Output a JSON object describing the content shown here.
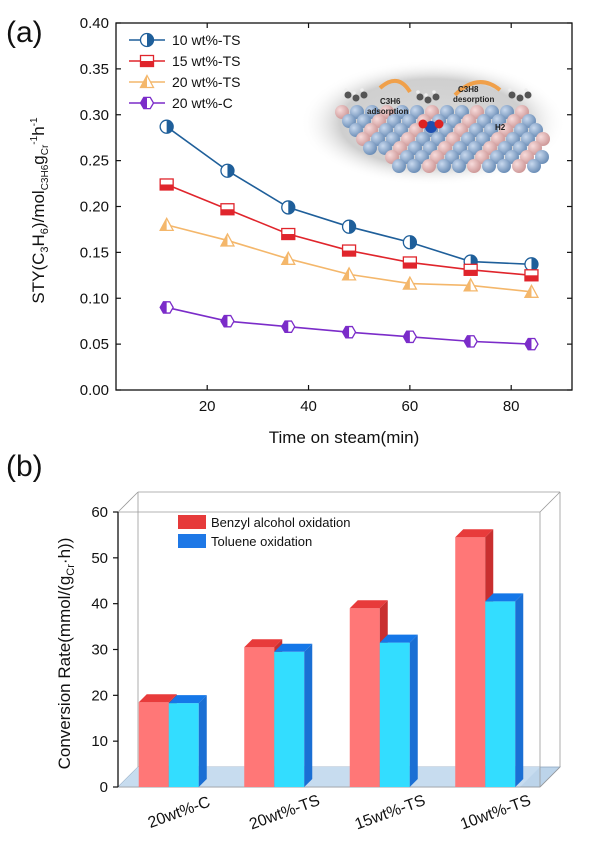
{
  "panel_labels": {
    "a": "(a)",
    "b": "(b)"
  },
  "inset": {
    "label_left_species": "C3H6",
    "label_left_action": "adsorption",
    "label_right_species": "C3H8",
    "label_right_action": "desorption",
    "label_h2": "H2"
  },
  "chart_data": [
    {
      "type": "line",
      "ylabel_parts": {
        "main": "STY(C",
        "sub1": "3",
        "mid1": "H",
        "sub2": "6",
        "mid2": ")/mol",
        "sub3": "C3H6",
        "mid3": "g",
        "sub4": "Cr",
        "sup1": "-1",
        "mid4": "h",
        "sup2": "-1"
      },
      "xlabel": "Time on steam(min)",
      "xlim": [
        2,
        92
      ],
      "ylim": [
        0.0,
        0.4
      ],
      "xticks": [
        20,
        40,
        60,
        80
      ],
      "yticks": [
        "0.00",
        "0.05",
        "0.10",
        "0.15",
        "0.20",
        "0.25",
        "0.30",
        "0.35",
        "0.40"
      ],
      "ytick_values": [
        0.0,
        0.05,
        0.1,
        0.15,
        0.2,
        0.25,
        0.3,
        0.35,
        0.4
      ],
      "legend_position": "top-left",
      "x": [
        12,
        24,
        36,
        48,
        60,
        72,
        84
      ],
      "series": [
        {
          "name": "10 wt%-TS",
          "color": "#1f5f9a",
          "marker": "half-circle",
          "values": [
            0.287,
            0.239,
            0.199,
            0.178,
            0.161,
            0.14,
            0.137
          ]
        },
        {
          "name": "15 wt%-TS",
          "color": "#e0252c",
          "marker": "half-square",
          "values": [
            0.224,
            0.197,
            0.17,
            0.152,
            0.139,
            0.131,
            0.125
          ]
        },
        {
          "name": "20 wt%-TS",
          "color": "#f4b76b",
          "marker": "half-triangle",
          "values": [
            0.18,
            0.163,
            0.143,
            0.126,
            0.116,
            0.114,
            0.107
          ]
        },
        {
          "name": "20 wt%-C",
          "color": "#7b2cc9",
          "marker": "half-hexagon",
          "values": [
            0.09,
            0.075,
            0.069,
            0.063,
            0.058,
            0.053,
            0.05
          ]
        }
      ]
    },
    {
      "type": "bar",
      "style": "3d",
      "ylabel_parts": {
        "main": "Conversion Rate(mmol/(g",
        "sub": "Cr",
        "end": "·h))"
      },
      "ylim": [
        0,
        60
      ],
      "yticks": [
        0,
        10,
        20,
        30,
        40,
        50,
        60
      ],
      "categories": [
        "20wt%-C",
        "20wt%-TS",
        "15wt%-TS",
        "10wt%-TS"
      ],
      "legend_position": "top-left",
      "series": [
        {
          "name": "Benzyl alcohol oxidation",
          "color": "#ff7777",
          "top_color": "#e83b3b",
          "side_color": "#c92f2f",
          "values": [
            18.5,
            30.5,
            39.0,
            54.5
          ]
        },
        {
          "name": "Toluene oxidation",
          "color": "#33ddff",
          "top_color": "#1577e8",
          "side_color": "#1a6fd4",
          "values": [
            18.3,
            29.5,
            31.5,
            40.5
          ]
        }
      ]
    }
  ]
}
